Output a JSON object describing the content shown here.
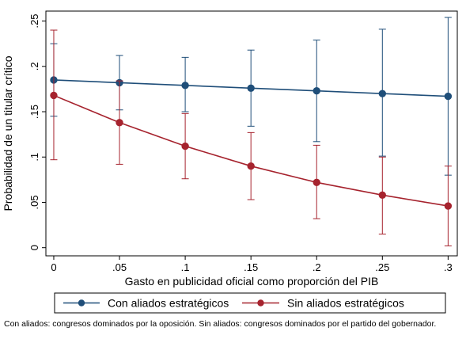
{
  "chart_data": {
    "type": "line",
    "title": "",
    "xlabel": "Gasto en publicidad oficial como proporción del PIB",
    "ylabel": "Probabilidad de un titular crítico",
    "x": [
      0,
      0.05,
      0.1,
      0.15,
      0.2,
      0.25,
      0.3
    ],
    "x_tick_labels": [
      "0",
      ".05",
      ".1",
      ".15",
      ".2",
      ".25",
      ".3"
    ],
    "y_ticks": [
      0,
      0.05,
      0.1,
      0.15,
      0.2,
      0.25
    ],
    "y_tick_labels": [
      "0",
      ".05",
      ".1",
      ".15",
      ".2",
      ".25"
    ],
    "xlim": [
      -0.006,
      0.307
    ],
    "ylim": [
      -0.009,
      0.261
    ],
    "grid": false,
    "legend_position": "bottom",
    "series": [
      {
        "name": "Con aliados estratégicos",
        "color": "#1f4e79",
        "values": [
          0.185,
          0.182,
          0.179,
          0.176,
          0.173,
          0.17,
          0.167
        ],
        "ci_low": [
          0.145,
          0.152,
          0.15,
          0.134,
          0.117,
          0.101,
          0.08
        ],
        "ci_high": [
          0.225,
          0.212,
          0.21,
          0.218,
          0.229,
          0.241,
          0.254
        ]
      },
      {
        "name": "Sin aliados estratégicos",
        "color": "#a6232e",
        "values": [
          0.168,
          0.138,
          0.112,
          0.09,
          0.072,
          0.058,
          0.046
        ],
        "ci_low": [
          0.097,
          0.092,
          0.076,
          0.053,
          0.032,
          0.015,
          0.002
        ],
        "ci_high": [
          0.24,
          0.184,
          0.148,
          0.127,
          0.113,
          0.1,
          0.09
        ]
      }
    ]
  },
  "footnote": "Con aliados: congresos dominados por la oposición. Sin aliados: congresos dominados por el partido del gobernador."
}
